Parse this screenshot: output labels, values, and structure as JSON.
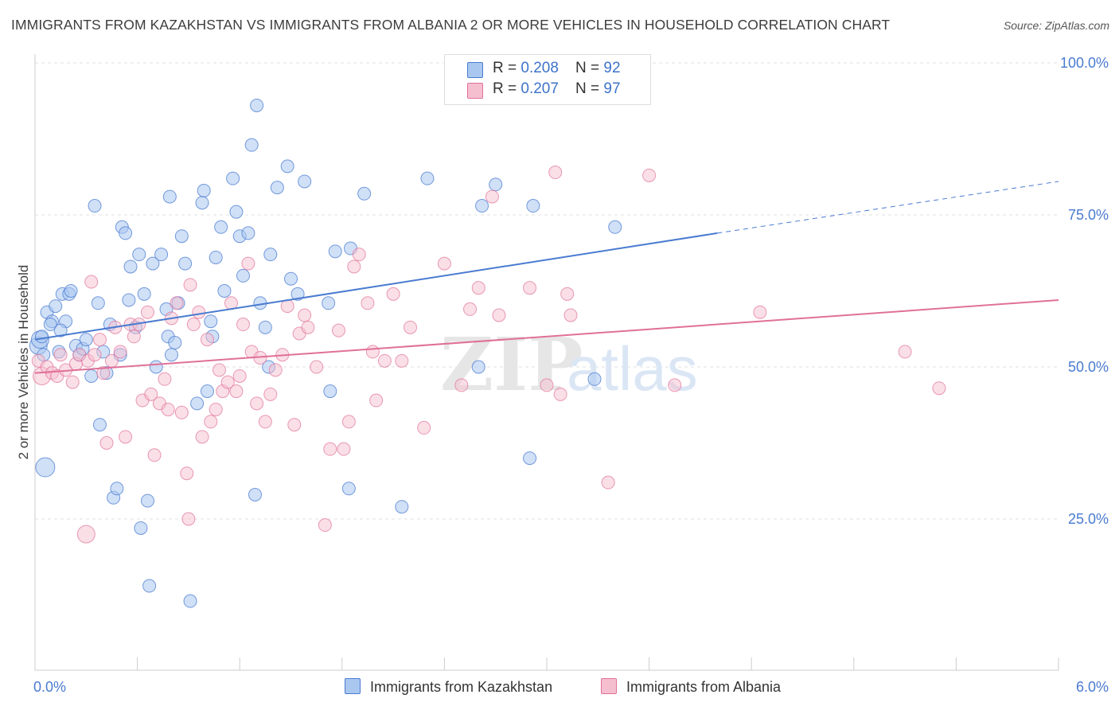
{
  "title": "IMMIGRANTS FROM KAZAKHSTAN VS IMMIGRANTS FROM ALBANIA 2 OR MORE VEHICLES IN HOUSEHOLD CORRELATION CHART",
  "source": "Source: ZipAtlas.com",
  "colors": {
    "blue": "#4a7bd0",
    "blue_fill": "#aac7f0",
    "pink": "#e07098",
    "pink_fill": "#f6bfd0"
  },
  "legend": {
    "rows": [
      {
        "r_label": "R = ",
        "r_value": "0.208",
        "n_label": "N = ",
        "n_value": "92"
      },
      {
        "r_label": "R = ",
        "r_value": "0.207",
        "n_label": "N = ",
        "n_value": "97"
      }
    ]
  },
  "watermark": {
    "zip": "ZIP",
    "atlas": "atlas"
  },
  "chart_data": {
    "type": "scatter",
    "xlabel": "",
    "ylabel": "2 or more Vehicles in Household",
    "xlim": [
      0,
      6.0
    ],
    "ylim": [
      0,
      105
    ],
    "x_tick_labels": [
      "0.0%",
      "6.0%"
    ],
    "y_ticks": [
      25,
      50,
      75,
      100
    ],
    "y_tick_labels": [
      "25.0%",
      "50.0%",
      "75.0%",
      "100.0%"
    ],
    "grid": true,
    "legend_position": "top-center",
    "series": [
      {
        "name": "Immigrants from Kazakhstan",
        "color": "#4a7bd0",
        "trend": {
          "x": [
            0.0,
            4.0
          ],
          "y": [
            54.5,
            72.0
          ],
          "dashed_to_x": 6.0,
          "dashed_to_y": 80.5
        },
        "points": [
          [
            0.02,
            53.5
          ],
          [
            0.03,
            54.5
          ],
          [
            0.05,
            52.0
          ],
          [
            0.06,
            33.5
          ],
          [
            0.07,
            59.0
          ],
          [
            0.1,
            57.5
          ],
          [
            0.12,
            60.0
          ],
          [
            0.14,
            52.5
          ],
          [
            0.16,
            62.0
          ],
          [
            0.18,
            57.5
          ],
          [
            0.2,
            62.0
          ],
          [
            0.21,
            62.5
          ],
          [
            0.24,
            53.5
          ],
          [
            0.26,
            52.0
          ],
          [
            0.28,
            53.0
          ],
          [
            0.3,
            54.5
          ],
          [
            0.33,
            48.5
          ],
          [
            0.35,
            76.5
          ],
          [
            0.37,
            60.5
          ],
          [
            0.38,
            40.5
          ],
          [
            0.4,
            52.5
          ],
          [
            0.42,
            49.0
          ],
          [
            0.44,
            57.0
          ],
          [
            0.46,
            28.5
          ],
          [
            0.48,
            30.0
          ],
          [
            0.5,
            52.0
          ],
          [
            0.51,
            73.0
          ],
          [
            0.53,
            72.0
          ],
          [
            0.55,
            61.0
          ],
          [
            0.56,
            66.5
          ],
          [
            0.59,
            56.5
          ],
          [
            0.61,
            68.5
          ],
          [
            0.62,
            23.5
          ],
          [
            0.64,
            62.0
          ],
          [
            0.66,
            28.0
          ],
          [
            0.67,
            14.0
          ],
          [
            0.69,
            67.0
          ],
          [
            0.71,
            50.0
          ],
          [
            0.74,
            68.5
          ],
          [
            0.77,
            59.5
          ],
          [
            0.78,
            55.0
          ],
          [
            0.79,
            78.0
          ],
          [
            0.8,
            52.0
          ],
          [
            0.82,
            54.0
          ],
          [
            0.84,
            60.5
          ],
          [
            0.86,
            71.5
          ],
          [
            0.88,
            67.0
          ],
          [
            0.91,
            11.5
          ],
          [
            0.95,
            44.0
          ],
          [
            0.98,
            77.0
          ],
          [
            0.99,
            79.0
          ],
          [
            1.01,
            46.0
          ],
          [
            1.03,
            57.5
          ],
          [
            1.04,
            55.0
          ],
          [
            1.06,
            68.0
          ],
          [
            1.09,
            73.0
          ],
          [
            1.11,
            62.5
          ],
          [
            1.16,
            81.0
          ],
          [
            1.18,
            75.5
          ],
          [
            1.2,
            71.5
          ],
          [
            1.22,
            65.0
          ],
          [
            1.25,
            72.0
          ],
          [
            1.27,
            86.5
          ],
          [
            1.29,
            29.0
          ],
          [
            1.3,
            93.0
          ],
          [
            1.32,
            60.5
          ],
          [
            1.35,
            56.5
          ],
          [
            1.37,
            50.0
          ],
          [
            1.38,
            68.5
          ],
          [
            1.42,
            79.5
          ],
          [
            1.48,
            83.0
          ],
          [
            1.5,
            64.5
          ],
          [
            1.54,
            62.0
          ],
          [
            1.58,
            80.5
          ],
          [
            1.72,
            60.5
          ],
          [
            1.73,
            46.0
          ],
          [
            1.76,
            69.0
          ],
          [
            1.84,
            30.0
          ],
          [
            1.85,
            69.5
          ],
          [
            1.93,
            78.5
          ],
          [
            2.15,
            27.0
          ],
          [
            2.3,
            81.0
          ],
          [
            2.6,
            50.0
          ],
          [
            2.62,
            76.5
          ],
          [
            2.7,
            80.0
          ],
          [
            2.9,
            35.0
          ],
          [
            2.92,
            76.5
          ],
          [
            3.28,
            48.0
          ],
          [
            3.4,
            73.0
          ],
          [
            0.04,
            55.0
          ],
          [
            0.09,
            57.0
          ],
          [
            0.15,
            56.0
          ]
        ]
      },
      {
        "name": "Immigrants from Albania",
        "color": "#e07098",
        "trend": {
          "x": [
            0.0,
            6.0
          ],
          "y": [
            49.0,
            61.0
          ]
        },
        "points": [
          [
            0.02,
            51.0
          ],
          [
            0.04,
            48.5
          ],
          [
            0.07,
            50.0
          ],
          [
            0.1,
            49.0
          ],
          [
            0.13,
            48.5
          ],
          [
            0.15,
            52.0
          ],
          [
            0.18,
            49.5
          ],
          [
            0.22,
            47.5
          ],
          [
            0.24,
            50.5
          ],
          [
            0.26,
            52.0
          ],
          [
            0.3,
            22.5
          ],
          [
            0.31,
            51.0
          ],
          [
            0.33,
            64.0
          ],
          [
            0.35,
            52.0
          ],
          [
            0.38,
            54.5
          ],
          [
            0.4,
            49.0
          ],
          [
            0.42,
            37.5
          ],
          [
            0.45,
            51.0
          ],
          [
            0.47,
            56.5
          ],
          [
            0.5,
            52.5
          ],
          [
            0.53,
            38.5
          ],
          [
            0.56,
            57.0
          ],
          [
            0.58,
            55.0
          ],
          [
            0.61,
            57.0
          ],
          [
            0.63,
            44.5
          ],
          [
            0.66,
            59.0
          ],
          [
            0.68,
            45.5
          ],
          [
            0.7,
            35.5
          ],
          [
            0.73,
            44.0
          ],
          [
            0.76,
            48.0
          ],
          [
            0.78,
            43.0
          ],
          [
            0.8,
            58.0
          ],
          [
            0.83,
            60.5
          ],
          [
            0.86,
            42.5
          ],
          [
            0.89,
            32.5
          ],
          [
            0.91,
            63.5
          ],
          [
            0.93,
            57.0
          ],
          [
            0.96,
            59.0
          ],
          [
            0.98,
            38.5
          ],
          [
            1.01,
            54.5
          ],
          [
            1.03,
            41.0
          ],
          [
            1.06,
            43.0
          ],
          [
            1.08,
            49.5
          ],
          [
            1.1,
            46.0
          ],
          [
            1.13,
            47.5
          ],
          [
            1.15,
            60.5
          ],
          [
            1.18,
            46.0
          ],
          [
            1.2,
            48.5
          ],
          [
            1.22,
            57.0
          ],
          [
            1.25,
            67.0
          ],
          [
            1.27,
            52.5
          ],
          [
            1.3,
            44.0
          ],
          [
            1.32,
            51.5
          ],
          [
            1.35,
            41.0
          ],
          [
            1.38,
            45.5
          ],
          [
            1.41,
            49.5
          ],
          [
            1.45,
            52.0
          ],
          [
            1.48,
            60.0
          ],
          [
            1.52,
            40.5
          ],
          [
            1.55,
            55.5
          ],
          [
            1.58,
            58.5
          ],
          [
            1.6,
            56.5
          ],
          [
            1.65,
            50.0
          ],
          [
            1.7,
            24.0
          ],
          [
            1.73,
            36.5
          ],
          [
            1.78,
            56.0
          ],
          [
            1.81,
            36.5
          ],
          [
            1.84,
            41.0
          ],
          [
            1.87,
            66.5
          ],
          [
            1.9,
            68.5
          ],
          [
            1.95,
            60.5
          ],
          [
            1.98,
            52.5
          ],
          [
            2.0,
            44.5
          ],
          [
            2.05,
            51.0
          ],
          [
            2.1,
            62.0
          ],
          [
            2.15,
            51.0
          ],
          [
            2.2,
            56.5
          ],
          [
            2.28,
            40.0
          ],
          [
            2.4,
            67.0
          ],
          [
            2.5,
            47.0
          ],
          [
            2.55,
            59.5
          ],
          [
            2.6,
            63.0
          ],
          [
            2.68,
            78.0
          ],
          [
            2.72,
            58.5
          ],
          [
            2.9,
            63.0
          ],
          [
            3.0,
            47.0
          ],
          [
            3.05,
            82.0
          ],
          [
            3.08,
            45.5
          ],
          [
            3.12,
            62.0
          ],
          [
            3.14,
            58.5
          ],
          [
            3.36,
            31.0
          ],
          [
            3.6,
            81.5
          ],
          [
            3.75,
            47.0
          ],
          [
            4.25,
            59.0
          ],
          [
            5.1,
            52.5
          ],
          [
            5.3,
            46.5
          ],
          [
            0.9,
            25.0
          ]
        ]
      }
    ]
  },
  "bottom_legend": [
    {
      "label": "Immigrants from Kazakhstan"
    },
    {
      "label": "Immigrants from Albania"
    }
  ]
}
